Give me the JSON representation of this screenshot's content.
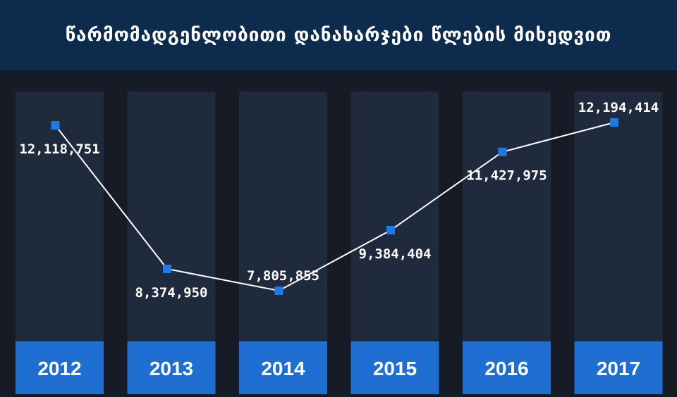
{
  "header": {
    "title": "წარმომადგენლობითი დანახარჯები წლების მიხედვით"
  },
  "colors": {
    "background": "#161b25",
    "header_bg": "#0d2b4c",
    "column_bg": "#1f2a3d",
    "accent": "#1f6fd3",
    "line": "#ffffff"
  },
  "chart_data": {
    "type": "line",
    "title": "წარმომადგენლობითი დანახარჯები წლების მიხედვით",
    "categories": [
      "2012",
      "2013",
      "2014",
      "2015",
      "2016",
      "2017"
    ],
    "values": [
      12118751,
      8374950,
      7805855,
      9384404,
      11427975,
      12194414
    ],
    "value_labels": [
      "12,118,751",
      "8,374,950",
      "7,805,855",
      "9,384,404",
      "11,427,975",
      "12,194,414"
    ],
    "xlabel": "",
    "ylabel": "",
    "grid": false,
    "legend": "none"
  }
}
